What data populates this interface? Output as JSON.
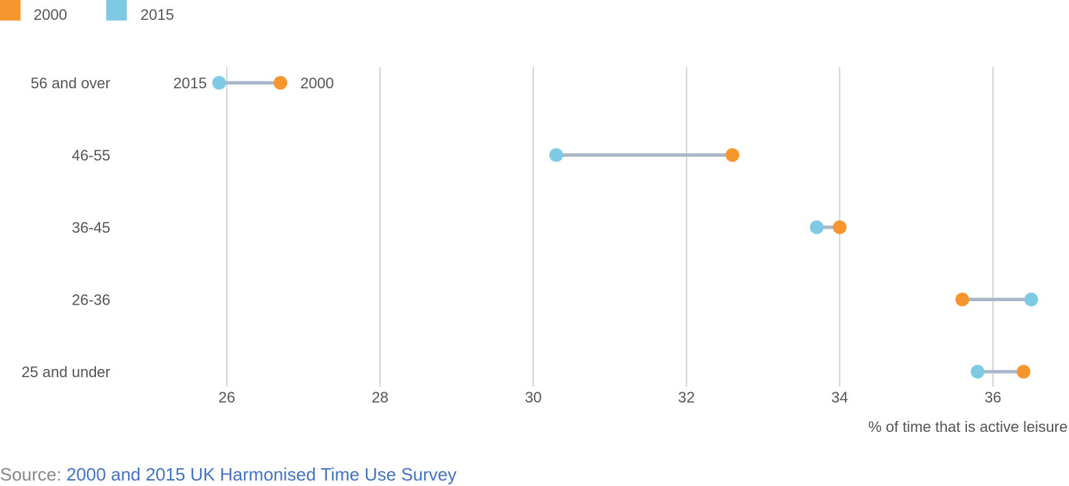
{
  "legend": {
    "items": [
      {
        "label": "2000",
        "color": "#f7962e"
      },
      {
        "label": "2015",
        "color": "#7ecae5"
      }
    ]
  },
  "source": {
    "prefix": "Source: ",
    "link_text": "2000 and 2015 UK Harmonised Time Use Survey"
  },
  "chart_data": {
    "type": "dumbbell",
    "title": "",
    "xlabel": "% of time that is active leisure",
    "ylabel": "",
    "xlim": [
      25,
      37
    ],
    "xticks": [
      26,
      28,
      30,
      32,
      34,
      36
    ],
    "grid": "vertical",
    "legend_position": "top-left",
    "categories": [
      "56 and over",
      "46-55",
      "36-45",
      "26-36",
      "25 and under"
    ],
    "series": [
      {
        "name": "2000",
        "color": "#f7962e",
        "values": [
          26.7,
          32.6,
          34.0,
          35.6,
          36.4
        ]
      },
      {
        "name": "2015",
        "color": "#7ecae5",
        "values": [
          25.9,
          30.3,
          33.7,
          36.5,
          35.8
        ]
      }
    ],
    "connector_color": "#a9b7c9",
    "point_annotations": [
      {
        "category": "56 and over",
        "series": "2015",
        "text": "2015"
      },
      {
        "category": "56 and over",
        "series": "2000",
        "text": "2000"
      }
    ]
  }
}
